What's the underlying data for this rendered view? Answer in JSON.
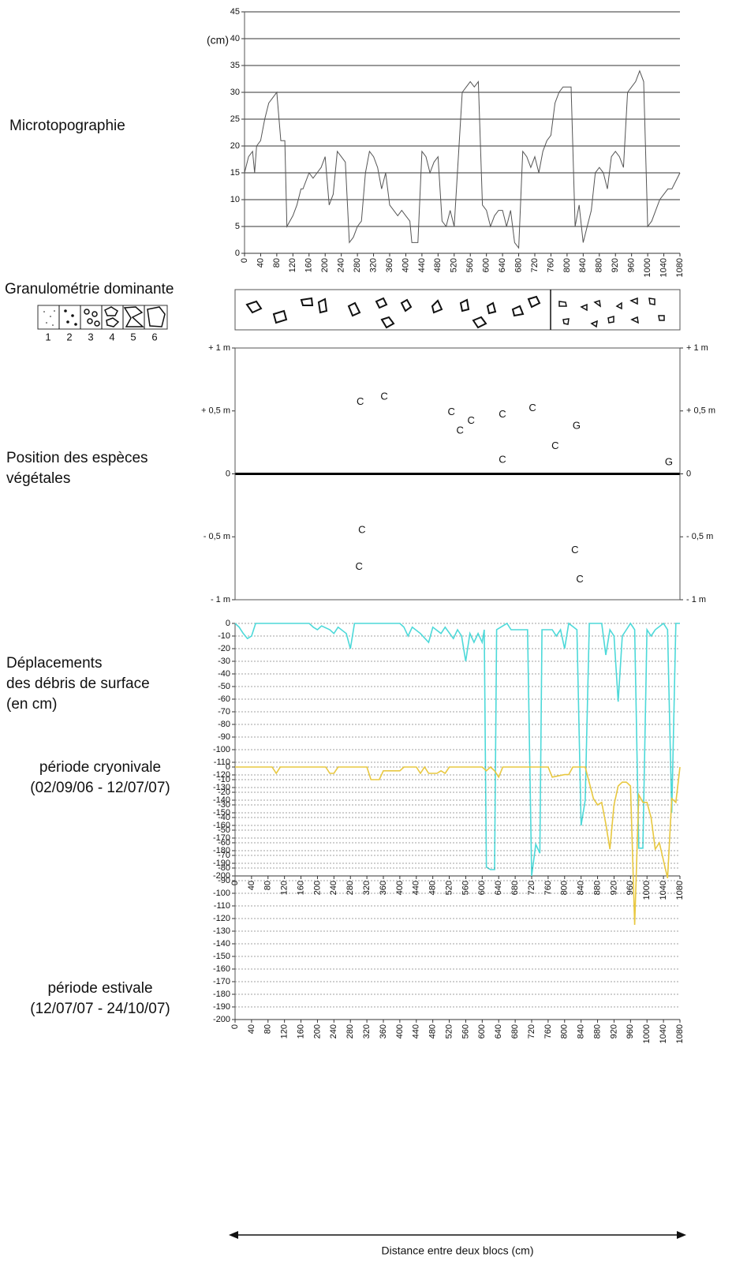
{
  "xlabel": "Distance entre deux blocs (cm)",
  "granulometry": {
    "title": "Granulométrie dominante",
    "legend": [
      "1",
      "2",
      "3",
      "4",
      "5",
      "6"
    ]
  },
  "chart_data": [
    {
      "type": "line",
      "title": [
        "Microtopographie"
      ],
      "ylabel": "(cm)",
      "color": "#555555",
      "grid": true,
      "x": [
        0,
        10,
        20,
        25,
        30,
        40,
        50,
        60,
        70,
        80,
        90,
        100,
        105,
        120,
        130,
        140,
        145,
        160,
        170,
        180,
        190,
        200,
        210,
        220,
        230,
        240,
        250,
        260,
        270,
        280,
        290,
        300,
        310,
        320,
        330,
        340,
        350,
        360,
        370,
        380,
        390,
        400,
        410,
        415,
        430,
        440,
        450,
        460,
        470,
        480,
        490,
        500,
        510,
        520,
        540,
        550,
        560,
        570,
        580,
        590,
        600,
        610,
        620,
        630,
        640,
        650,
        660,
        670,
        680,
        690,
        700,
        710,
        720,
        730,
        740,
        750,
        760,
        770,
        780,
        790,
        800,
        810,
        820,
        830,
        840,
        850,
        860,
        870,
        880,
        890,
        900,
        910,
        920,
        930,
        940,
        950,
        960,
        970,
        980,
        990,
        1000,
        1010,
        1020,
        1030,
        1050,
        1060,
        1080
      ],
      "values": [
        15,
        18,
        19,
        15,
        20,
        21,
        25,
        28,
        29,
        30,
        21,
        21,
        5,
        7,
        9,
        12,
        12,
        15,
        14,
        15,
        16,
        18,
        9,
        11,
        19,
        18,
        17,
        2,
        3,
        5,
        6,
        15,
        19,
        18,
        16,
        12,
        15,
        9,
        8,
        7,
        8,
        7,
        6,
        2,
        2,
        19,
        18,
        15,
        17,
        18,
        6,
        5,
        8,
        5,
        30,
        31,
        32,
        31,
        32,
        9,
        8,
        5,
        7,
        8,
        8,
        5,
        8,
        2,
        1,
        19,
        18,
        16,
        18,
        15,
        19,
        21,
        22,
        28,
        30,
        31,
        31,
        31,
        5,
        9,
        2,
        5,
        8,
        15,
        16,
        15,
        12,
        18,
        19,
        18,
        16,
        30,
        31,
        32,
        34,
        32,
        5,
        6,
        8,
        10,
        12,
        12,
        15
      ],
      "xlim": [
        0,
        1080
      ],
      "xticks": [
        0,
        40,
        80,
        120,
        160,
        200,
        240,
        280,
        320,
        360,
        400,
        440,
        480,
        520,
        560,
        600,
        640,
        680,
        720,
        760,
        800,
        840,
        880,
        920,
        960,
        1000,
        1040,
        1080
      ],
      "ylim": [
        0,
        45
      ],
      "yticks": [
        0,
        5,
        10,
        15,
        20,
        25,
        30,
        35,
        40,
        45
      ]
    },
    {
      "type": "scatter",
      "title": [
        "Position des espèces",
        "végétales"
      ],
      "color": "#222222",
      "x": [
        304,
        362,
        525,
        546,
        573,
        649,
        722,
        829,
        777,
        649,
        1053,
        308,
        301,
        825,
        837
      ],
      "values": [
        0.57,
        0.61,
        0.49,
        0.34,
        0.42,
        0.47,
        0.52,
        0.38,
        0.22,
        0.11,
        0.09,
        -0.45,
        -0.74,
        -0.61,
        -0.84
      ],
      "labels": [
        "C",
        "C",
        "C",
        "C",
        "C",
        "C",
        "C",
        "G",
        "C",
        "C",
        "G",
        "C",
        "C",
        "C",
        "C"
      ],
      "xlim": [
        0,
        1080
      ],
      "ylim": [
        -1,
        1
      ],
      "yticks": [
        {
          "value": 1,
          "label": "+ 1 m"
        },
        {
          "value": 0.5,
          "label": "+ 0,5 m"
        },
        0,
        {
          "value": -0.5,
          "label": "- 0,5 m"
        },
        {
          "value": -1,
          "label": "- 1 m"
        }
      ]
    },
    {
      "type": "line",
      "title": [
        "Déplacements",
        "des débris de surface",
        "(en cm)"
      ],
      "subtitle": [
        "période cryonivale",
        "(02/09/06 - 12/07/07)"
      ],
      "color": "#4dd9d9",
      "grid": true,
      "x": [
        0,
        10,
        20,
        30,
        40,
        50,
        180,
        190,
        200,
        210,
        230,
        240,
        250,
        270,
        280,
        290,
        400,
        410,
        420,
        430,
        450,
        470,
        480,
        500,
        510,
        530,
        540,
        550,
        560,
        570,
        580,
        590,
        600,
        605,
        610,
        620,
        630,
        635,
        660,
        670,
        690,
        710,
        720,
        730,
        740,
        745,
        760,
        770,
        780,
        790,
        800,
        810,
        830,
        840,
        850,
        860,
        890,
        900,
        910,
        920,
        930,
        940,
        950,
        960,
        970,
        980,
        990,
        1000,
        1010,
        1020,
        1040,
        1050,
        1060,
        1070,
        1080
      ],
      "values": [
        0,
        -3,
        -8,
        -12,
        -10,
        0,
        0,
        -3,
        -5,
        -2,
        -5,
        -8,
        -3,
        -8,
        -20,
        0,
        0,
        -3,
        -10,
        -3,
        -8,
        -15,
        -3,
        -8,
        -3,
        -12,
        -5,
        -10,
        -30,
        -8,
        -15,
        -8,
        -15,
        -5,
        -193,
        -195,
        -195,
        -5,
        0,
        -5,
        -5,
        -5,
        -200,
        -175,
        -182,
        -5,
        -5,
        -5,
        -10,
        -5,
        -20,
        0,
        -5,
        -160,
        -140,
        0,
        0,
        -25,
        -5,
        -10,
        -62,
        -10,
        -5,
        0,
        -5,
        -178,
        -178,
        -5,
        -10,
        -5,
        0,
        -5,
        -150,
        0,
        0
      ],
      "xlim": [
        0,
        1080
      ],
      "xticks": [
        0,
        40,
        80,
        120,
        160,
        200,
        240,
        280,
        320,
        360,
        400,
        440,
        480,
        520,
        560,
        600,
        640,
        680,
        720,
        760,
        800,
        840,
        880,
        920,
        960,
        1000,
        1040,
        1080
      ],
      "ylim": [
        -200,
        0
      ],
      "yticks": [
        0,
        -10,
        -20,
        -30,
        -40,
        -50,
        -60,
        -70,
        -80,
        -90,
        -100,
        -110,
        -120,
        -130,
        -140,
        -150,
        -160,
        -170,
        -180,
        -190,
        -200
      ]
    },
    {
      "type": "line",
      "subtitle": [
        "période estivale",
        "(12/07/07 - 24/10/07)"
      ],
      "color": "#e8c840",
      "grid": true,
      "x": [
        0,
        90,
        100,
        110,
        220,
        230,
        240,
        250,
        320,
        330,
        350,
        360,
        380,
        400,
        410,
        440,
        450,
        460,
        470,
        490,
        500,
        510,
        520,
        600,
        610,
        620,
        630,
        640,
        650,
        760,
        770,
        800,
        810,
        820,
        850,
        870,
        880,
        890,
        900,
        910,
        920,
        930,
        940,
        950,
        960,
        970,
        980,
        990,
        1000,
        1010,
        1020,
        1030,
        1050,
        1060,
        1070,
        1080
      ],
      "values": [
        0,
        0,
        -5,
        0,
        0,
        -5,
        -5,
        0,
        0,
        -10,
        -10,
        -3,
        -3,
        -3,
        0,
        0,
        -5,
        0,
        -5,
        -5,
        -3,
        -5,
        0,
        0,
        -3,
        0,
        -3,
        -8,
        0,
        0,
        -8,
        -6,
        -6,
        0,
        0,
        -25,
        -30,
        -28,
        -45,
        -65,
        -30,
        -15,
        -12,
        -12,
        -15,
        -125,
        -22,
        -28,
        -28,
        -40,
        -65,
        -60,
        -88,
        -25,
        -28,
        0
      ],
      "xlim": [
        0,
        1080
      ],
      "xticks": [
        0,
        40,
        80,
        120,
        160,
        200,
        240,
        280,
        320,
        360,
        400,
        440,
        480,
        520,
        560,
        600,
        640,
        680,
        720,
        760,
        800,
        840,
        880,
        920,
        960,
        1000,
        1040,
        1080
      ],
      "ylim": [
        -200,
        0
      ],
      "yticks": [
        0,
        -10,
        -20,
        -30,
        -40,
        -50,
        -60,
        -70,
        -80,
        -90,
        -100,
        -110,
        -120,
        -130,
        -140,
        -150,
        -160,
        -170,
        -180,
        -190,
        -200
      ]
    }
  ]
}
